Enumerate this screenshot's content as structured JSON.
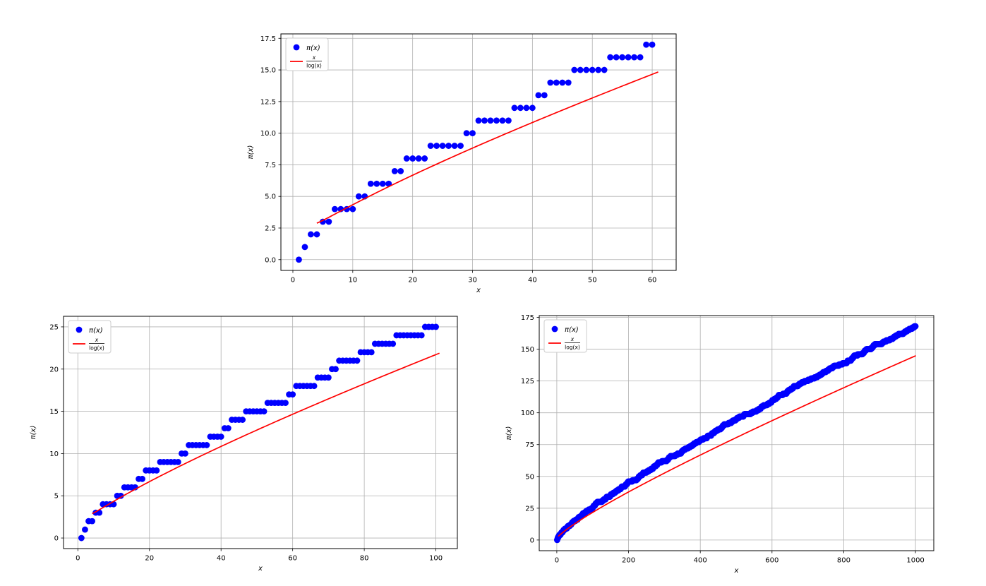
{
  "figure": {
    "background": "#ffffff",
    "description": "Three matplotlib-style plots comparing the prime counting function π(x) (blue dots) with the approximation x/log(x) (red line) for x up to 60, 100 and 1000."
  },
  "colors": {
    "scatter": "#0000ff",
    "line": "#ff0000",
    "grid": "#b0b0b0",
    "spine": "#000000",
    "tick": "#000000",
    "legend_border": "#cccccc",
    "legend_background": "#ffffff"
  },
  "legend": {
    "scatter_label": "π(x)",
    "line_label_numerator": "x",
    "line_label_denominator": "log(x)",
    "position": "upper left"
  },
  "values_derivation": "pi(x) = number of primes ≤ x, computed from primes_up_to_1000",
  "primes_up_to_1000": [
    2,
    3,
    5,
    7,
    11,
    13,
    17,
    19,
    23,
    29,
    31,
    37,
    41,
    43,
    47,
    53,
    59,
    61,
    67,
    71,
    73,
    79,
    83,
    89,
    97,
    101,
    103,
    107,
    109,
    113,
    127,
    131,
    137,
    139,
    149,
    151,
    157,
    163,
    167,
    173,
    179,
    181,
    191,
    193,
    197,
    199,
    211,
    223,
    227,
    229,
    233,
    239,
    241,
    251,
    257,
    263,
    269,
    271,
    277,
    281,
    283,
    293,
    307,
    311,
    313,
    317,
    331,
    337,
    347,
    349,
    353,
    359,
    367,
    373,
    379,
    383,
    389,
    397,
    401,
    409,
    419,
    421,
    431,
    433,
    439,
    443,
    449,
    457,
    461,
    463,
    467,
    479,
    487,
    491,
    499,
    503,
    509,
    521,
    523,
    541,
    547,
    557,
    563,
    569,
    571,
    577,
    587,
    593,
    599,
    601,
    607,
    613,
    617,
    619,
    631,
    641,
    643,
    647,
    653,
    659,
    661,
    673,
    677,
    683,
    691,
    701,
    709,
    719,
    727,
    733,
    739,
    743,
    751,
    757,
    761,
    769,
    773,
    787,
    797,
    809,
    811,
    821,
    823,
    827,
    829,
    839,
    853,
    857,
    859,
    863,
    877,
    881,
    883,
    887,
    907,
    911,
    919,
    929,
    937,
    941,
    947,
    953,
    967,
    971,
    977,
    983,
    991,
    997
  ],
  "chart_data": [
    {
      "name": "pi-vs-x-up-to-60",
      "type": "scatter",
      "title": "",
      "xlabel": "x",
      "ylabel": "π(x)",
      "series": [
        {
          "name": "π(x)",
          "kind": "scatter",
          "color": "#0000ff",
          "x_integer_range": [
            1,
            60
          ]
        },
        {
          "name": "x/log(x)",
          "kind": "line",
          "color": "#ff0000",
          "x_range": [
            4,
            61
          ]
        }
      ],
      "xlim": [
        -2,
        64
      ],
      "ylim": [
        -0.85,
        17.85
      ],
      "xticks": {
        "values": [
          0,
          10,
          20,
          30,
          40,
          50,
          60
        ],
        "labels": [
          "0",
          "10",
          "20",
          "30",
          "40",
          "50",
          "60"
        ]
      },
      "yticks": {
        "values": [
          0,
          2.5,
          5,
          7.5,
          10,
          12.5,
          15,
          17.5
        ],
        "labels": [
          "0.0",
          "2.5",
          "5.0",
          "7.5",
          "10.0",
          "12.5",
          "15.0",
          "17.5"
        ]
      },
      "grid": true,
      "legend_position": "upper left"
    },
    {
      "name": "pi-vs-x-up-to-100",
      "type": "scatter",
      "title": "",
      "xlabel": "x",
      "ylabel": "π(x)",
      "series": [
        {
          "name": "π(x)",
          "kind": "scatter",
          "color": "#0000ff",
          "x_integer_range": [
            1,
            100
          ]
        },
        {
          "name": "x/log(x)",
          "kind": "line",
          "color": "#ff0000",
          "x_range": [
            4,
            101
          ]
        }
      ],
      "xlim": [
        -4,
        106
      ],
      "ylim": [
        -1.25,
        26.25
      ],
      "xticks": {
        "values": [
          0,
          20,
          40,
          60,
          80,
          100
        ],
        "labels": [
          "0",
          "20",
          "40",
          "60",
          "80",
          "100"
        ]
      },
      "yticks": {
        "values": [
          0,
          5,
          10,
          15,
          20,
          25
        ],
        "labels": [
          "0",
          "5",
          "10",
          "15",
          "20",
          "25"
        ]
      },
      "grid": true,
      "legend_position": "upper left"
    },
    {
      "name": "pi-vs-x-up-to-1000",
      "type": "scatter",
      "title": "",
      "xlabel": "x",
      "ylabel": "π(x)",
      "series": [
        {
          "name": "π(x)",
          "kind": "scatter",
          "color": "#0000ff",
          "x_integer_range": [
            1,
            1000
          ]
        },
        {
          "name": "x/log(x)",
          "kind": "line",
          "color": "#ff0000",
          "x_range": [
            4,
            1001
          ]
        }
      ],
      "xlim": [
        -49,
        1051
      ],
      "ylim": [
        -8.4,
        176.4
      ],
      "xticks": {
        "values": [
          0,
          200,
          400,
          600,
          800,
          1000
        ],
        "labels": [
          "0",
          "200",
          "400",
          "600",
          "800",
          "1000"
        ]
      },
      "yticks": {
        "values": [
          0,
          25,
          50,
          75,
          100,
          125,
          150,
          175
        ],
        "labels": [
          "0",
          "25",
          "50",
          "75",
          "100",
          "125",
          "150",
          "175"
        ]
      },
      "grid": true,
      "legend_position": "upper left"
    }
  ]
}
